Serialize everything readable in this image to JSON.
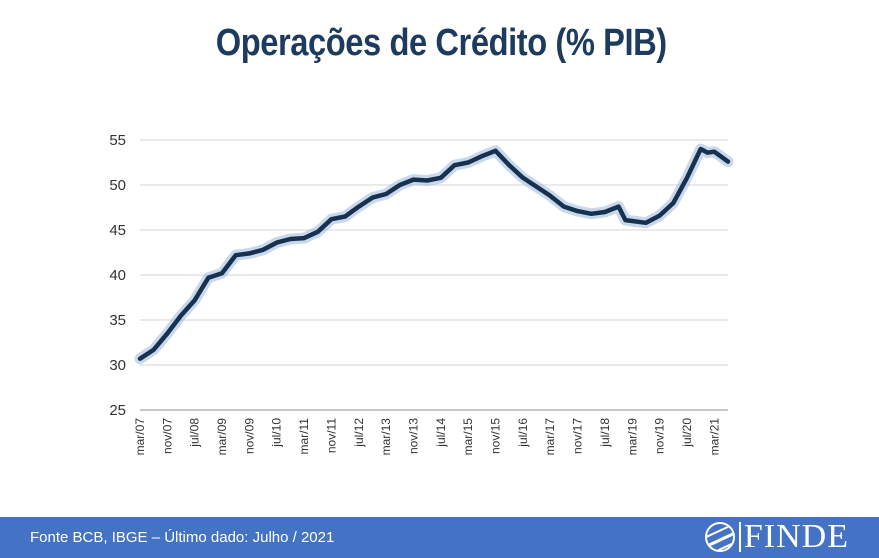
{
  "chart_data": {
    "type": "line",
    "title": "Operações de Crédito (% PIB)",
    "xlabel": "",
    "ylabel": "",
    "ylim": [
      25,
      55
    ],
    "yticks": [
      25,
      30,
      35,
      40,
      45,
      50,
      55
    ],
    "grid": "horizontal",
    "legend": "none",
    "x_tick_labels": [
      "mar/07",
      "nov/07",
      "jul/08",
      "mar/09",
      "nov/09",
      "jul/10",
      "mar/11",
      "nov/11",
      "jul/12",
      "mar/13",
      "nov/13",
      "jul/14",
      "mar/15",
      "nov/15",
      "jul/16",
      "mar/17",
      "nov/17",
      "jul/18",
      "mar/19",
      "nov/19",
      "jul/20",
      "mar/21"
    ],
    "series": [
      {
        "color": "#17324f",
        "glow": "#9db8df",
        "points": [
          [
            "mar/07",
            30.7
          ],
          [
            "jul/07",
            31.7
          ],
          [
            "nov/07",
            33.5
          ],
          [
            "mar/08",
            35.5
          ],
          [
            "jul/08",
            37.2
          ],
          [
            "nov/08",
            39.7
          ],
          [
            "mar/09",
            40.2
          ],
          [
            "jul/09",
            42.2
          ],
          [
            "nov/09",
            42.4
          ],
          [
            "mar/10",
            42.8
          ],
          [
            "jul/10",
            43.6
          ],
          [
            "nov/10",
            44.0
          ],
          [
            "mar/11",
            44.1
          ],
          [
            "jul/11",
            44.8
          ],
          [
            "nov/11",
            46.2
          ],
          [
            "mar/12",
            46.5
          ],
          [
            "jul/12",
            47.6
          ],
          [
            "nov/12",
            48.6
          ],
          [
            "mar/13",
            49.0
          ],
          [
            "jul/13",
            50.0
          ],
          [
            "nov/13",
            50.6
          ],
          [
            "mar/14",
            50.5
          ],
          [
            "jul/14",
            50.8
          ],
          [
            "nov/14",
            52.2
          ],
          [
            "mar/15",
            52.5
          ],
          [
            "jul/15",
            53.2
          ],
          [
            "nov/15",
            53.8
          ],
          [
            "mar/16",
            52.2
          ],
          [
            "jul/16",
            50.8
          ],
          [
            "nov/16",
            49.8
          ],
          [
            "mar/17",
            48.8
          ],
          [
            "jul/17",
            47.6
          ],
          [
            "nov/17",
            47.1
          ],
          [
            "mar/18",
            46.8
          ],
          [
            "jul/18",
            47.0
          ],
          [
            "nov/18",
            47.6
          ],
          [
            "jan/19",
            46.1
          ],
          [
            "mar/19",
            46.0
          ],
          [
            "jul/19",
            45.8
          ],
          [
            "nov/19",
            46.6
          ],
          [
            "mar/20",
            48.0
          ],
          [
            "jul/20",
            50.8
          ],
          [
            "nov/20",
            54.0
          ],
          [
            "jan/21",
            53.6
          ],
          [
            "mar/21",
            53.7
          ],
          [
            "jul/21",
            52.6
          ]
        ]
      }
    ]
  },
  "footer": {
    "source_text": "Fonte BCB, IBGE – Último dado: Julho / 2021",
    "logo_text": "FINDE",
    "color": "#4472c4"
  }
}
